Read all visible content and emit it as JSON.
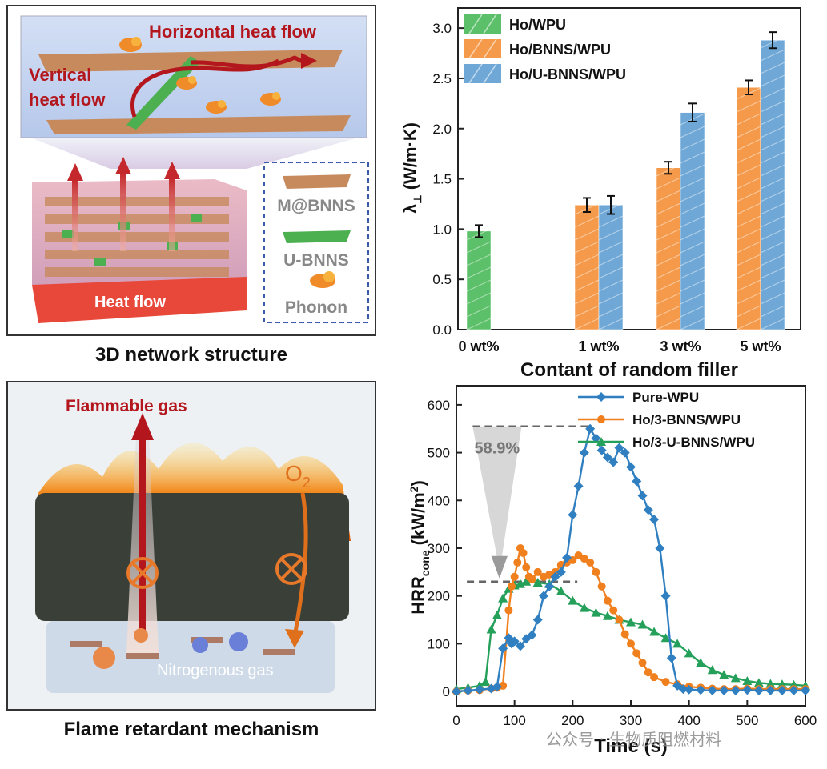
{
  "schematic_top": {
    "horizontal_label": "Horizontal heat flow",
    "vertical_label_1": "Vertical",
    "vertical_label_2": "heat flow",
    "heat_flow_label": "Heat flow",
    "legend": [
      "M@BNNS",
      "U-BNNS",
      "Phonon"
    ],
    "caption": "3D network structure"
  },
  "schematic_bottom": {
    "flammable_label": "Flammable gas",
    "o2_label": "O",
    "o2_subscript": "2",
    "nitro_label": "Nitrogenous gas",
    "caption": "Flame retardant mechanism"
  },
  "watermark": "公众号 · 生物质阻燃材料",
  "colors": {
    "green": "#5cc06a",
    "orange": "#f59a4a",
    "blue": "#6fa8d6",
    "hrr_blue": "#2f7fc1",
    "hrr_orange": "#f07f1e",
    "hrr_green": "#25a05a"
  },
  "chart_data": [
    {
      "type": "bar",
      "title": "",
      "xlabel": "Contant of random filler",
      "ylabel_main": "λ",
      "ylabel_sub": "⊥",
      "ylabel_unit": " (W/m·K)",
      "categories": [
        "0 wt%",
        "1 wt%",
        "3 wt%",
        "5 wt%"
      ],
      "ylim": [
        0,
        3.2
      ],
      "yticks": [
        "0.0",
        "0.5",
        "1.0",
        "1.5",
        "2.0",
        "2.5",
        "3.0"
      ],
      "series": [
        {
          "name": "Ho/WPU",
          "values": [
            0.98,
            null,
            null,
            null
          ],
          "errors": [
            0.06,
            null,
            null,
            null
          ]
        },
        {
          "name": "Ho/BNNS/WPU",
          "values": [
            null,
            1.24,
            1.61,
            2.41
          ],
          "errors": [
            null,
            0.07,
            0.06,
            0.07
          ]
        },
        {
          "name": "Ho/U-BNNS/WPU",
          "values": [
            null,
            1.24,
            2.16,
            2.88
          ],
          "errors": [
            null,
            0.09,
            0.09,
            0.08
          ]
        }
      ],
      "legend_position": "top-left"
    },
    {
      "type": "line",
      "xlabel": "Time (s)",
      "ylabel_main": "HRR",
      "ylabel_sub": "cone",
      "ylabel_unit": " (kW/m",
      "ylabel_sup": "2",
      "ylabel_end": ")",
      "xlim": [
        0,
        600
      ],
      "ylim": [
        -30,
        640
      ],
      "xticks": [
        "0",
        "100",
        "200",
        "300",
        "400",
        "500",
        "600"
      ],
      "yticks": [
        "0",
        "100",
        "200",
        "300",
        "400",
        "500",
        "600"
      ],
      "annotation": "58.9%",
      "ref_lines": [
        555,
        230
      ],
      "legend_position": "top-right",
      "series": [
        {
          "name": "Pure-WPU",
          "x": [
            0,
            20,
            40,
            60,
            70,
            80,
            90,
            95,
            100,
            110,
            120,
            130,
            140,
            150,
            160,
            170,
            180,
            190,
            200,
            210,
            220,
            230,
            240,
            250,
            260,
            270,
            280,
            290,
            300,
            310,
            320,
            330,
            340,
            350,
            360,
            370,
            380,
            390,
            400,
            420,
            440,
            460,
            480,
            500,
            520,
            540,
            560,
            580,
            600
          ],
          "y": [
            0,
            2,
            4,
            6,
            10,
            90,
            112,
            100,
            105,
            95,
            110,
            118,
            150,
            200,
            220,
            240,
            250,
            280,
            370,
            430,
            500,
            550,
            530,
            505,
            490,
            480,
            510,
            500,
            470,
            440,
            410,
            380,
            360,
            300,
            200,
            70,
            12,
            5,
            4,
            3,
            2,
            2,
            2,
            3,
            2,
            2,
            2,
            2,
            2
          ]
        },
        {
          "name": "Ho/3-BNNS/WPU",
          "x": [
            0,
            20,
            40,
            60,
            70,
            80,
            90,
            95,
            100,
            105,
            110,
            115,
            120,
            125,
            130,
            140,
            150,
            160,
            170,
            180,
            190,
            200,
            210,
            220,
            230,
            240,
            250,
            260,
            270,
            280,
            290,
            300,
            310,
            320,
            330,
            340,
            360,
            380,
            400,
            420,
            440,
            460,
            480,
            500,
            520,
            540,
            560,
            580,
            600
          ],
          "y": [
            0,
            2,
            3,
            6,
            8,
            12,
            170,
            220,
            240,
            270,
            300,
            290,
            260,
            240,
            235,
            250,
            240,
            245,
            250,
            265,
            270,
            275,
            285,
            278,
            270,
            250,
            220,
            190,
            170,
            150,
            120,
            100,
            80,
            60,
            40,
            30,
            20,
            15,
            10,
            8,
            6,
            5,
            5,
            6,
            5,
            5,
            5,
            5,
            5
          ]
        },
        {
          "name": "Ho/3-U-BNNS/WPU",
          "x": [
            0,
            20,
            40,
            50,
            60,
            70,
            80,
            90,
            100,
            110,
            120,
            140,
            160,
            180,
            200,
            220,
            240,
            260,
            280,
            300,
            320,
            340,
            360,
            380,
            400,
            420,
            440,
            460,
            480,
            500,
            520,
            540,
            560,
            580,
            600
          ],
          "y": [
            5,
            8,
            12,
            20,
            130,
            160,
            195,
            215,
            222,
            225,
            230,
            228,
            225,
            210,
            190,
            175,
            165,
            158,
            150,
            145,
            140,
            125,
            112,
            100,
            80,
            60,
            45,
            35,
            28,
            22,
            18,
            16,
            15,
            14,
            12
          ]
        }
      ]
    }
  ]
}
